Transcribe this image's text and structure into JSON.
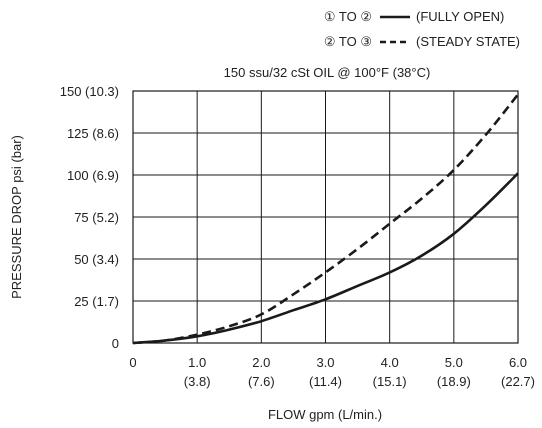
{
  "chart_data": {
    "type": "line",
    "title": "",
    "subtitle": "150 ssu/32 cSt OIL @ 100°F (38°C)",
    "xlabel": "FLOW gpm (L/min.)",
    "ylabel": "PRESSURE DROP psi (bar)",
    "xlim": [
      0,
      6
    ],
    "ylim": [
      0,
      150
    ],
    "grid": true,
    "legend_position": "top",
    "x_ticks": [
      {
        "value": 0,
        "label": "0",
        "sublabel": ""
      },
      {
        "value": 1,
        "label": "1.0",
        "sublabel": "(3.8)"
      },
      {
        "value": 2,
        "label": "2.0",
        "sublabel": "(7.6)"
      },
      {
        "value": 3,
        "label": "3.0",
        "sublabel": "(11.4)"
      },
      {
        "value": 4,
        "label": "4.0",
        "sublabel": "(15.1)"
      },
      {
        "value": 5,
        "label": "5.0",
        "sublabel": "(18.9)"
      },
      {
        "value": 6,
        "label": "6.0",
        "sublabel": "(22.7)"
      }
    ],
    "y_ticks": [
      {
        "value": 0,
        "label": "0"
      },
      {
        "value": 25,
        "label": "25 (1.7)"
      },
      {
        "value": 50,
        "label": "50 (3.4)"
      },
      {
        "value": 75,
        "label": "75 (5.2)"
      },
      {
        "value": 100,
        "label": "100 (6.9)"
      },
      {
        "value": 125,
        "label": "125 (8.6)"
      },
      {
        "value": 150,
        "label": "150 (10.3)"
      }
    ],
    "series": [
      {
        "name": "① TO ② (FULLY OPEN)",
        "style": "solid",
        "color": "#1a1a1a",
        "x": [
          0,
          0.5,
          1,
          1.5,
          2,
          2.5,
          3,
          3.5,
          4,
          4.5,
          5,
          5.5,
          6
        ],
        "y": [
          0,
          1.5,
          4,
          8,
          13,
          19.5,
          26,
          34,
          42,
          52,
          65,
          82,
          101
        ]
      },
      {
        "name": "② TO ③ (STEADY STATE)",
        "style": "dashed",
        "color": "#1a1a1a",
        "x": [
          0,
          0.5,
          1,
          1.5,
          2,
          2.5,
          3,
          3.5,
          4,
          4.5,
          5,
          5.5,
          6
        ],
        "y": [
          0,
          1.5,
          5,
          10,
          17,
          29,
          42,
          56,
          71,
          86,
          103,
          124,
          148
        ]
      }
    ]
  }
}
